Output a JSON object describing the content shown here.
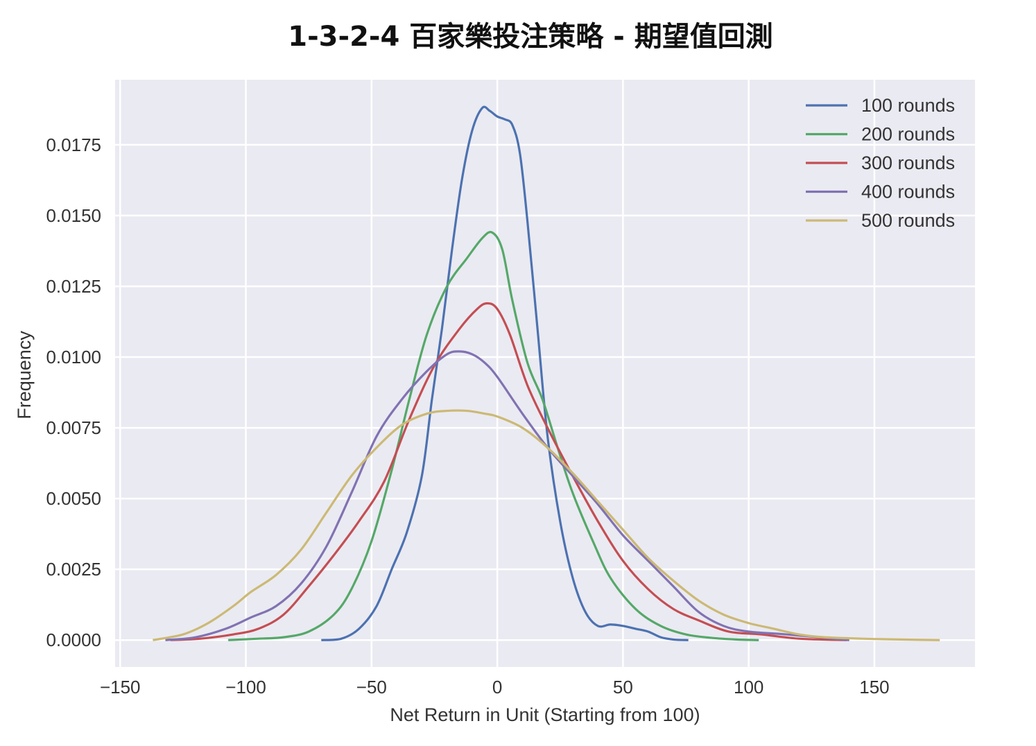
{
  "chart_data": {
    "type": "line",
    "title": "1-3-2-4 百家樂投注策略 - 期望值回測",
    "xlabel": "Net Return in Unit (Starting from 100)",
    "ylabel": "Frequency",
    "xlim": [
      -152,
      190
    ],
    "ylim": [
      -0.00095,
      0.0198
    ],
    "xticks": [
      -150,
      -100,
      -50,
      0,
      50,
      100,
      150
    ],
    "xtick_labels": [
      "−150",
      "−100",
      "−50",
      "0",
      "50",
      "100",
      "150"
    ],
    "yticks": [
      0,
      0.0025,
      0.005,
      0.0075,
      0.01,
      0.0125,
      0.015,
      0.0175
    ],
    "ytick_labels": [
      "0.0000",
      "0.0025",
      "0.0050",
      "0.0075",
      "0.0100",
      "0.0125",
      "0.0150",
      "0.0175"
    ],
    "grid": true,
    "legend_position": "top-right",
    "series": [
      {
        "name": "100 rounds",
        "color": "#4c72b0",
        "x": [
          -70,
          -62,
          -55,
          -48,
          -42,
          -36,
          -30,
          -26,
          -22,
          -18,
          -14,
          -10,
          -6,
          -3,
          0,
          3,
          6,
          9,
          12,
          16,
          20,
          25,
          30,
          35,
          40,
          45,
          50,
          55,
          60,
          65,
          70,
          76
        ],
        "y": [
          0.0,
          5e-05,
          0.0004,
          0.0012,
          0.0025,
          0.0038,
          0.0058,
          0.0085,
          0.011,
          0.0138,
          0.0163,
          0.018,
          0.0188,
          0.0187,
          0.0185,
          0.0184,
          0.0182,
          0.0172,
          0.0148,
          0.011,
          0.0072,
          0.0042,
          0.0022,
          0.001,
          0.0005,
          0.00055,
          0.0005,
          0.0004,
          0.0003,
          0.0001,
          2e-05,
          0.0
        ]
      },
      {
        "name": "200 rounds",
        "color": "#55a868",
        "x": [
          -107,
          -95,
          -85,
          -75,
          -65,
          -58,
          -50,
          -42,
          -35,
          -28,
          -20,
          -12,
          -6,
          -2,
          2,
          6,
          12,
          18,
          24,
          30,
          38,
          45,
          55,
          65,
          75,
          85,
          95,
          104
        ],
        "y": [
          0.0,
          5e-05,
          0.0001,
          0.0003,
          0.0009,
          0.0018,
          0.0035,
          0.006,
          0.0085,
          0.0108,
          0.0125,
          0.0135,
          0.0142,
          0.0144,
          0.0138,
          0.012,
          0.0098,
          0.0085,
          0.0068,
          0.0052,
          0.0035,
          0.0022,
          0.0011,
          0.0005,
          0.0002,
          8e-05,
          2e-05,
          0.0
        ]
      },
      {
        "name": "300 rounds",
        "color": "#c44e52",
        "x": [
          -130,
          -118,
          -105,
          -95,
          -85,
          -75,
          -65,
          -55,
          -45,
          -35,
          -25,
          -15,
          -8,
          -4,
          0,
          5,
          12,
          20,
          30,
          40,
          50,
          60,
          70,
          80,
          92,
          105,
          120,
          139
        ],
        "y": [
          0.0,
          5e-05,
          0.0002,
          0.0004,
          0.0009,
          0.0019,
          0.003,
          0.0042,
          0.0056,
          0.0078,
          0.0097,
          0.011,
          0.0117,
          0.0119,
          0.0117,
          0.0108,
          0.009,
          0.0075,
          0.0058,
          0.0042,
          0.0028,
          0.0018,
          0.0011,
          0.0007,
          0.0003,
          0.0002,
          5e-05,
          0.0
        ]
      },
      {
        "name": "400 rounds",
        "color": "#8172b2",
        "x": [
          -132,
          -120,
          -108,
          -98,
          -88,
          -78,
          -68,
          -58,
          -48,
          -38,
          -28,
          -20,
          -15,
          -10,
          -5,
          0,
          10,
          20,
          30,
          40,
          50,
          60,
          70,
          80,
          90,
          100,
          115,
          140
        ],
        "y": [
          0.0,
          0.0001,
          0.0004,
          0.0008,
          0.0012,
          0.002,
          0.0033,
          0.0052,
          0.0072,
          0.0085,
          0.0095,
          0.0101,
          0.0102,
          0.0101,
          0.0098,
          0.0093,
          0.008,
          0.0068,
          0.0058,
          0.0048,
          0.0037,
          0.0028,
          0.0019,
          0.001,
          0.0005,
          0.0003,
          0.0002,
          0.0
        ]
      },
      {
        "name": "500 rounds",
        "color": "#ccb974",
        "x": [
          -137,
          -125,
          -115,
          -105,
          -98,
          -88,
          -78,
          -68,
          -58,
          -48,
          -38,
          -28,
          -20,
          -12,
          -5,
          0,
          10,
          20,
          30,
          40,
          50,
          60,
          70,
          80,
          90,
          100,
          110,
          120,
          130,
          145,
          160,
          176
        ],
        "y": [
          0.0,
          0.0002,
          0.0006,
          0.0012,
          0.0017,
          0.0023,
          0.0032,
          0.0045,
          0.0058,
          0.0068,
          0.0076,
          0.008,
          0.0081,
          0.0081,
          0.008,
          0.0079,
          0.0075,
          0.0068,
          0.0059,
          0.0049,
          0.0039,
          0.0029,
          0.0021,
          0.0014,
          0.0009,
          0.0006,
          0.0004,
          0.0002,
          0.0001,
          5e-05,
          2e-05,
          0.0
        ]
      }
    ]
  }
}
